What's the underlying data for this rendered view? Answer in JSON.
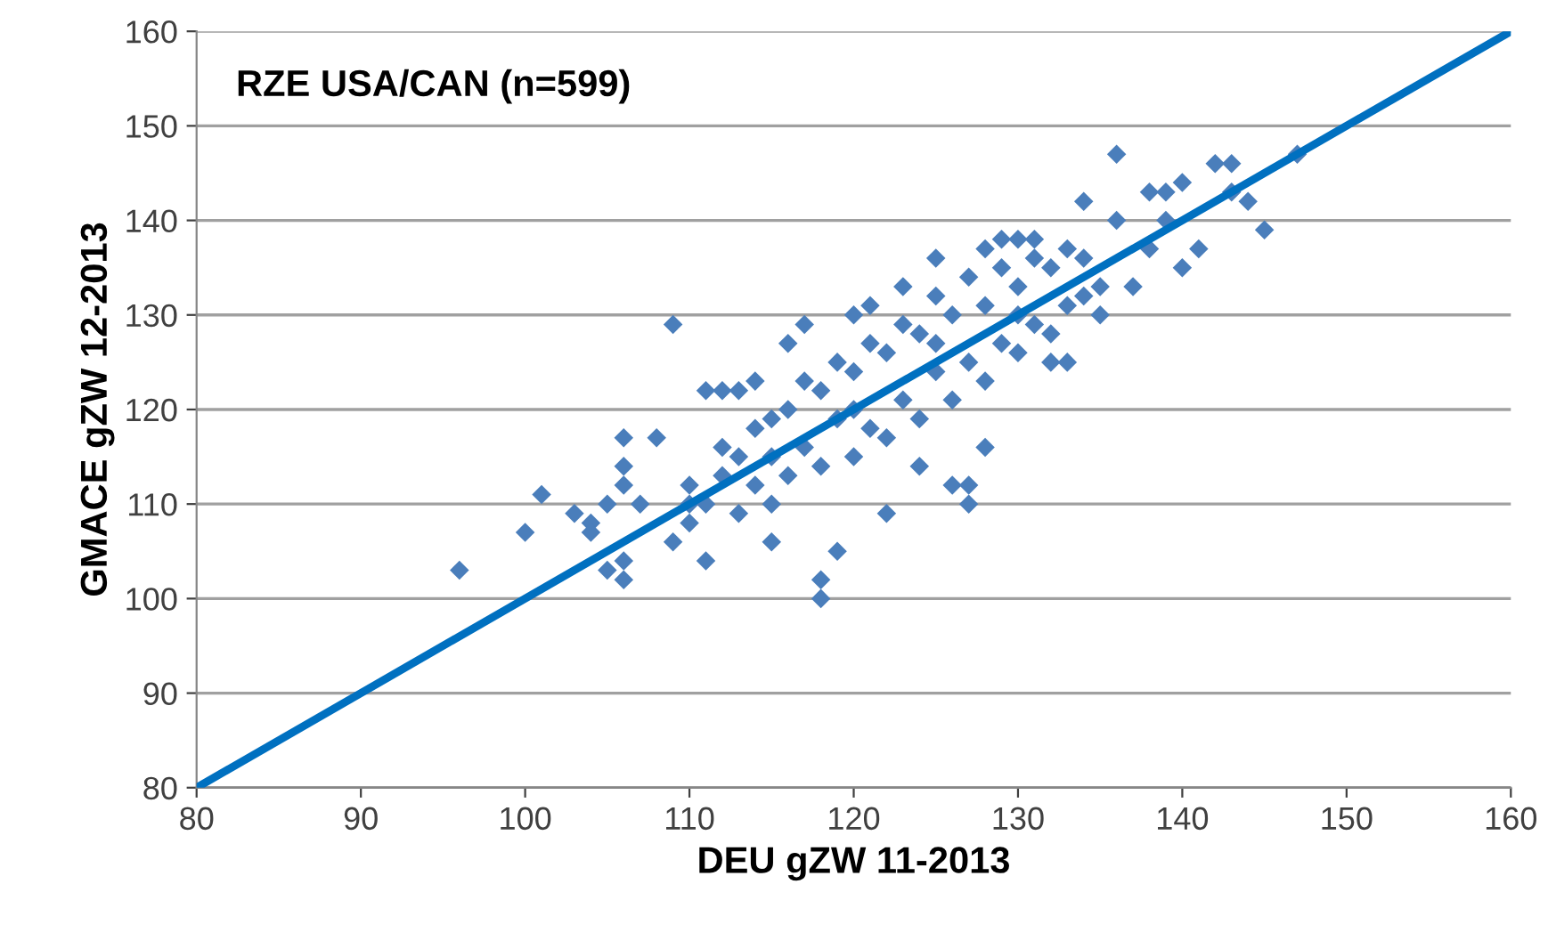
{
  "chart_data": {
    "type": "scatter",
    "xlabel": "DEU gZW 11-2013",
    "ylabel": "GMACE gZW 12-2013",
    "annotations": [
      "RZE USA/CAN (n=599)"
    ],
    "xlim": [
      80,
      160
    ],
    "ylim": [
      80,
      160
    ],
    "xticks": [
      80,
      90,
      100,
      110,
      120,
      130,
      140,
      150,
      160
    ],
    "yticks": [
      80,
      90,
      100,
      110,
      120,
      130,
      140,
      150,
      160
    ],
    "grid": "y",
    "marker": "diamond",
    "series": [
      {
        "color": "#4a7ebb",
        "x": [
          96,
          100,
          101,
          103,
          104,
          104,
          105,
          105,
          106,
          106,
          106,
          106,
          106,
          107,
          108,
          109,
          109,
          110,
          110,
          111,
          111,
          112,
          113,
          114,
          115,
          115,
          116,
          117,
          118,
          118,
          119,
          120,
          121,
          122,
          123,
          124,
          125,
          126,
          127,
          127,
          128,
          128,
          129,
          130,
          131,
          132,
          133,
          134,
          135,
          136,
          136,
          137,
          138,
          139,
          140,
          140,
          141,
          142,
          143,
          143,
          144,
          145,
          147,
          138,
          139,
          110,
          112,
          113,
          114,
          115,
          116,
          117,
          118,
          119,
          120,
          121,
          122,
          123,
          124,
          125,
          126,
          127,
          128,
          129,
          130,
          131,
          132,
          133,
          134,
          135,
          116,
          118,
          120,
          122,
          124,
          126,
          128,
          130,
          132,
          134,
          114,
          117,
          119,
          121,
          123,
          125,
          127,
          129,
          131,
          133,
          120,
          125,
          130,
          115,
          112,
          111,
          113
        ],
        "values": [
          103,
          107,
          111,
          109,
          108,
          107,
          110,
          103,
          102,
          104,
          117,
          114,
          112,
          110,
          117,
          129,
          106,
          112,
          108,
          104,
          122,
          122,
          122,
          123,
          106,
          110,
          127,
          129,
          102,
          100,
          105,
          130,
          131,
          109,
          133,
          114,
          136,
          112,
          110,
          112,
          137,
          116,
          138,
          138,
          138,
          125,
          125,
          142,
          130,
          147,
          140,
          133,
          143,
          143,
          144,
          135,
          137,
          146,
          146,
          143,
          142,
          139,
          147,
          137,
          140,
          110,
          113,
          115,
          118,
          115,
          120,
          116,
          122,
          119,
          124,
          118,
          126,
          121,
          128,
          124,
          130,
          125,
          131,
          127,
          133,
          129,
          135,
          131,
          136,
          133,
          113,
          114,
          115,
          117,
          119,
          121,
          123,
          126,
          128,
          132,
          112,
          123,
          125,
          127,
          129,
          132,
          134,
          135,
          136,
          137,
          120,
          127,
          130,
          119,
          116,
          110,
          109
        ]
      },
      {
        "type": "line",
        "color": "#0070c0",
        "line_style": "solid",
        "marker": "none",
        "x": [
          80,
          160
        ],
        "values": [
          80,
          160
        ]
      }
    ]
  }
}
